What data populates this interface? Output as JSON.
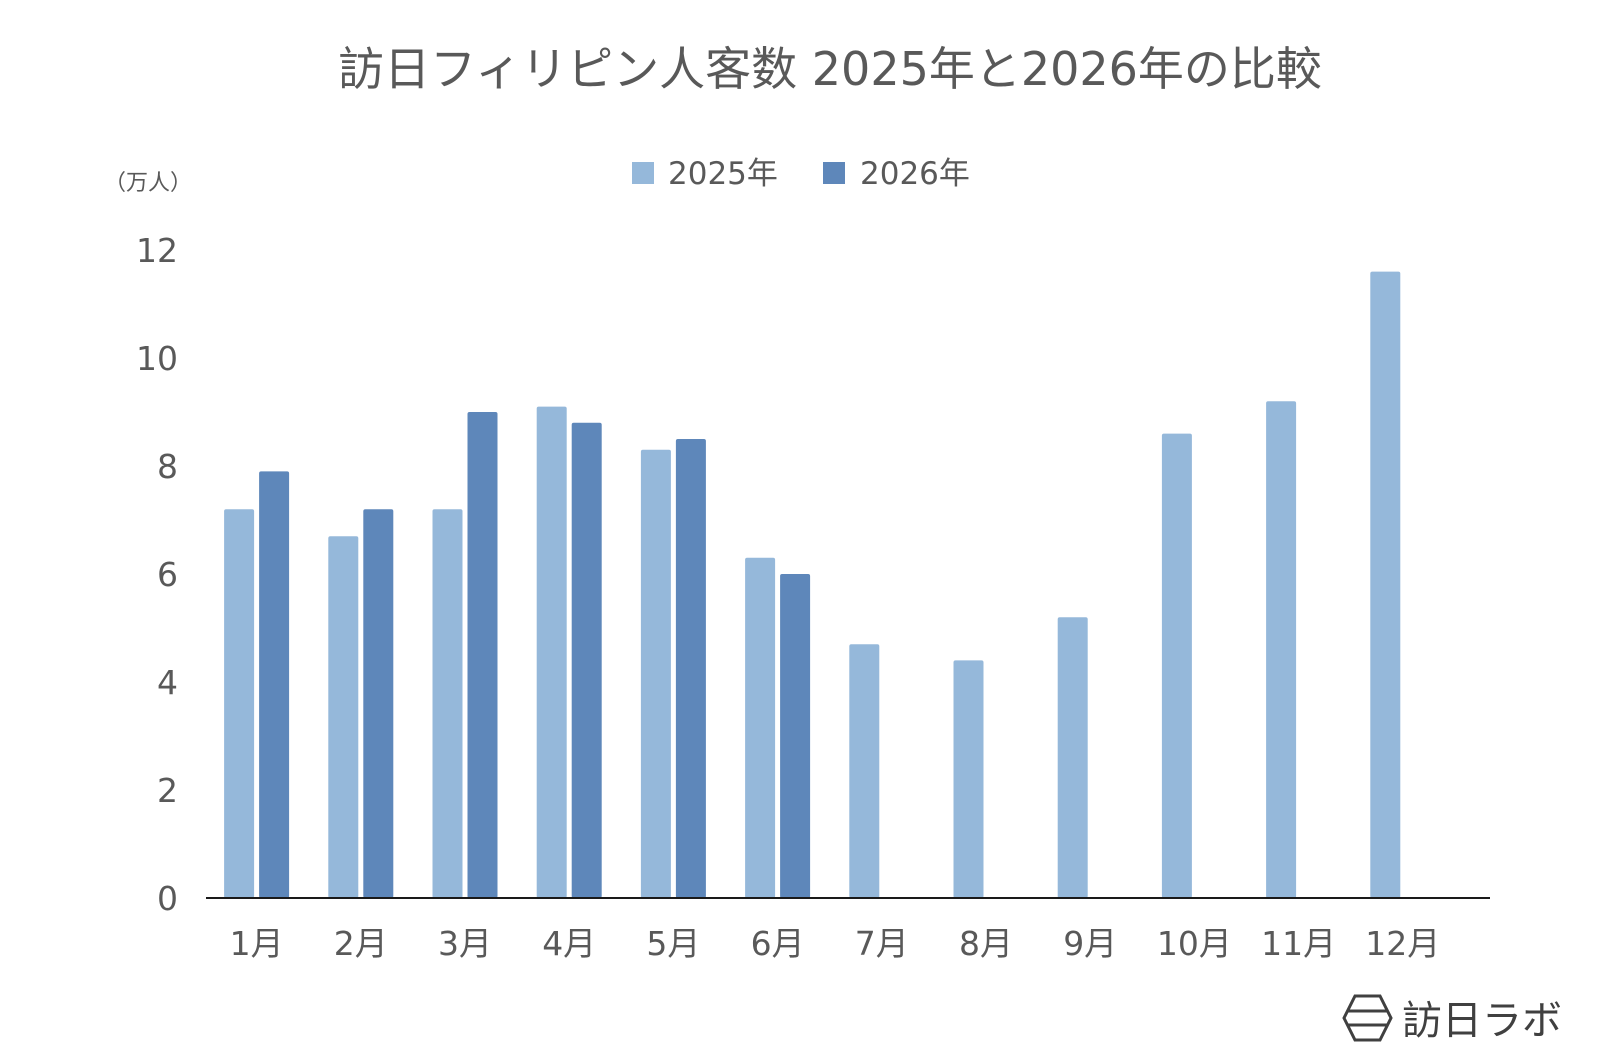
{
  "chart_data": {
    "type": "bar",
    "title": "訪日フィリピン人客数 2025年と2026年の比較",
    "unit_label": "（万人）",
    "categories": [
      "1月",
      "2月",
      "3月",
      "4月",
      "5月",
      "6月",
      "7月",
      "8月",
      "9月",
      "10月",
      "11月",
      "12月"
    ],
    "series": [
      {
        "name": "2025年",
        "color": "#95B8DA",
        "values": [
          7.2,
          6.7,
          7.2,
          9.1,
          8.3,
          6.3,
          4.7,
          4.4,
          5.2,
          8.6,
          9.2,
          11.6
        ]
      },
      {
        "name": "2026年",
        "color": "#5E87BA",
        "values": [
          7.9,
          7.2,
          9.0,
          8.8,
          8.5,
          6.0,
          null,
          null,
          null,
          null,
          null,
          null
        ]
      }
    ],
    "yticks": [
      0,
      2,
      4,
      6,
      8,
      10,
      12
    ],
    "ylim": [
      0,
      12
    ],
    "grid": false,
    "legend_position": "top-center"
  },
  "brand": {
    "name": "訪日ラボ",
    "icon": "hexagon-logo-icon"
  }
}
